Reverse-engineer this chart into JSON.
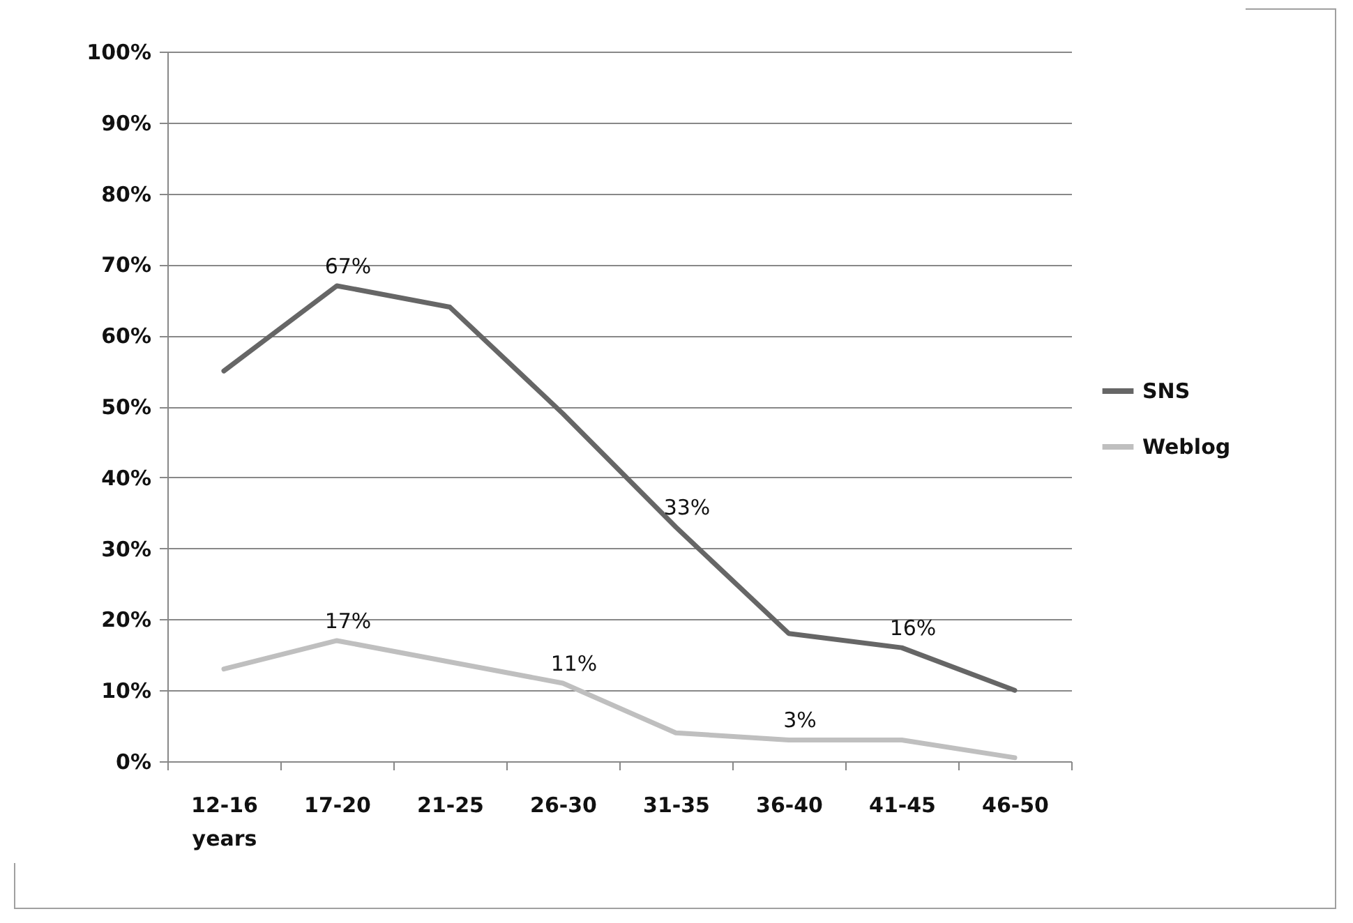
{
  "chart_data": {
    "type": "line",
    "categories": [
      "12-16 years",
      "17-20",
      "21-25",
      "26-30",
      "31-35",
      "36-40",
      "41-45",
      "46-50"
    ],
    "series": [
      {
        "name": "SNS",
        "color": "#666666",
        "values": [
          55,
          67,
          64,
          49,
          33,
          18,
          16,
          10
        ],
        "value_labels": [
          null,
          "67%",
          null,
          null,
          "33%",
          null,
          "16%",
          null
        ]
      },
      {
        "name": "Weblog",
        "color": "#bfbfbf",
        "values": [
          13,
          17,
          14,
          11,
          4,
          3,
          3,
          0.5
        ],
        "value_labels": [
          null,
          "17%",
          null,
          "11%",
          null,
          "3%",
          null,
          null
        ]
      }
    ],
    "ylim": [
      0,
      100
    ],
    "yticks": [
      {
        "value": 0,
        "label": "0%"
      },
      {
        "value": 10,
        "label": "10%"
      },
      {
        "value": 20,
        "label": "20%"
      },
      {
        "value": 30,
        "label": "30%"
      },
      {
        "value": 40,
        "label": "40%"
      },
      {
        "value": 50,
        "label": "50%"
      },
      {
        "value": 60,
        "label": "60%"
      },
      {
        "value": 70,
        "label": "70%"
      },
      {
        "value": 80,
        "label": "80%"
      },
      {
        "value": 90,
        "label": "90%"
      },
      {
        "value": 100,
        "label": "100%"
      }
    ],
    "grid": "y",
    "legend": "right"
  }
}
